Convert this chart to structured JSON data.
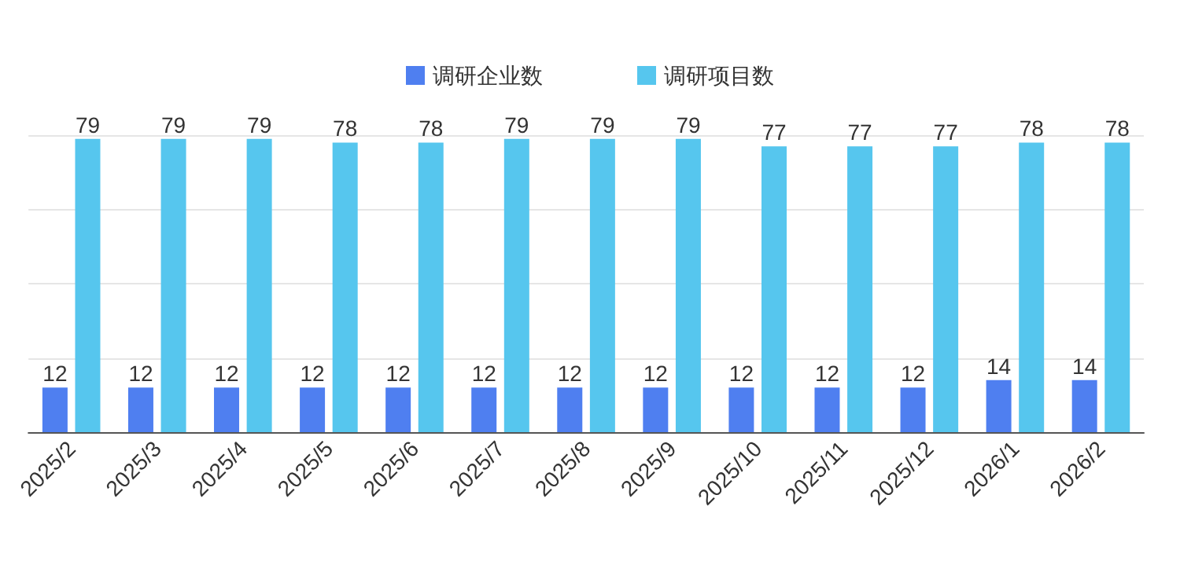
{
  "chart_data": {
    "type": "bar",
    "categories": [
      "2025/2",
      "2025/3",
      "2025/4",
      "2025/5",
      "2025/6",
      "2025/7",
      "2025/8",
      "2025/9",
      "2025/10",
      "2025/11",
      "2025/12",
      "2026/1",
      "2026/2"
    ],
    "series": [
      {
        "name": "调研企业数",
        "color": "#4f7ff0",
        "values": [
          12,
          12,
          12,
          12,
          12,
          12,
          12,
          12,
          12,
          12,
          12,
          14,
          14
        ]
      },
      {
        "name": "调研项目数",
        "color": "#56c6ee",
        "values": [
          79,
          79,
          79,
          78,
          78,
          79,
          79,
          79,
          77,
          77,
          77,
          78,
          78
        ]
      }
    ],
    "ylim": [
      0,
      80
    ],
    "yticks": [
      {
        "value": 0,
        "label": null
      },
      {
        "value": 20,
        "label": null
      },
      {
        "value": 40,
        "label": null
      },
      {
        "value": 60,
        "label": null
      },
      {
        "value": 80,
        "label": null
      }
    ],
    "tick_labels": "x",
    "grid": "y",
    "legend": "top",
    "data_labels": true
  }
}
